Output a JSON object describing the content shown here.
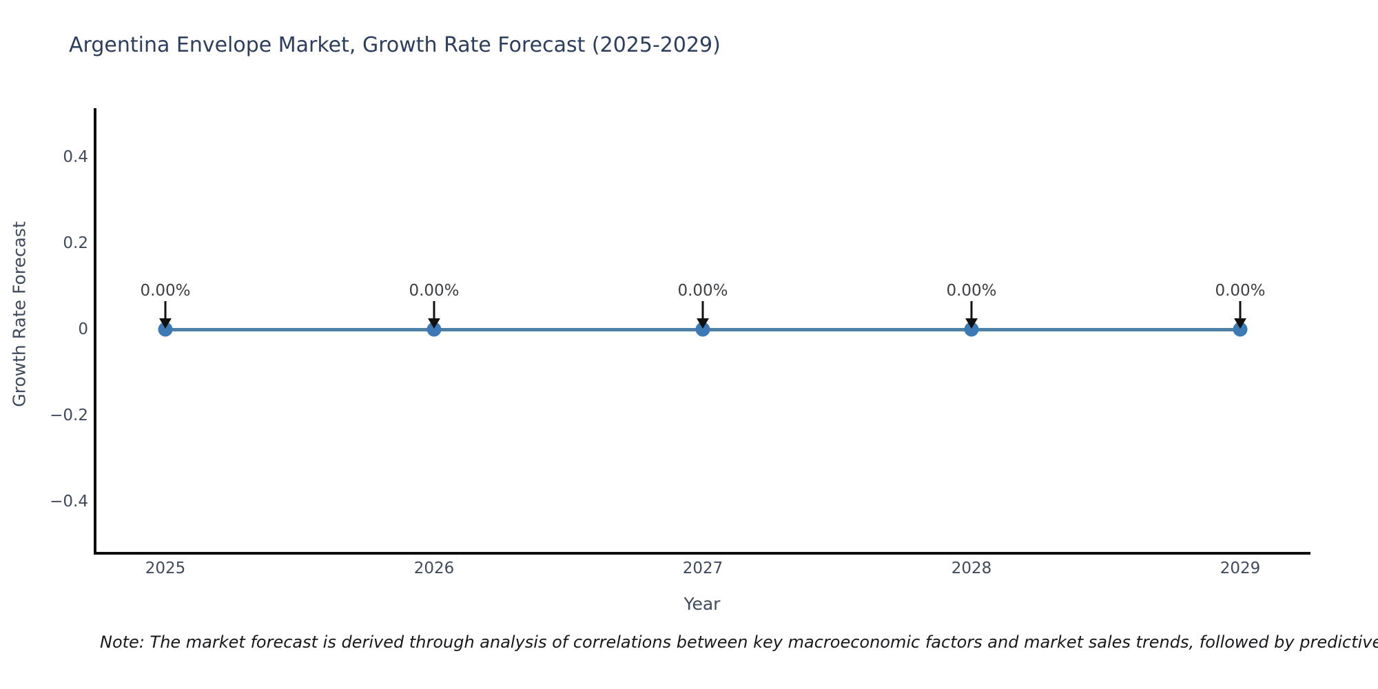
{
  "chart_data": {
    "type": "line",
    "title": "Argentina Envelope Market, Growth Rate Forecast (2025-2029)",
    "xlabel": "Year",
    "ylabel": "Growth Rate Forecast",
    "x": [
      2025,
      2026,
      2027,
      2028,
      2029
    ],
    "x_tick_labels": [
      "2025",
      "2026",
      "2027",
      "2028",
      "2029"
    ],
    "series": [
      {
        "name": "Growth Rate Forecast",
        "values": [
          0,
          0,
          0,
          0,
          0
        ]
      }
    ],
    "point_labels": [
      "0.00%",
      "0.00%",
      "0.00%",
      "0.00%",
      "0.00%"
    ],
    "yticks": [
      0.4,
      0.2,
      0,
      -0.2,
      -0.4
    ],
    "ytick_labels": [
      "0.4",
      "0.2",
      "0",
      "−0.2",
      "−0.4"
    ],
    "ylim": [
      -0.52,
      0.52
    ],
    "grid": false,
    "legend": "none",
    "annotations_have_arrows": true,
    "colors": {
      "line": "#4f81a6",
      "marker": "#3c79b5",
      "arrow": "#111111",
      "title_text": "#2c3e5d",
      "axis_text": "#3f4a5c",
      "annotation_text": "#3d4044",
      "spine": "#0e0e0e",
      "background": "#ffffff"
    }
  },
  "note": {
    "text": "Note: The market forecast is derived through analysis of correlations between key macroeconomic factors and market sales trends, followed by predictive modeling to project future sal"
  }
}
